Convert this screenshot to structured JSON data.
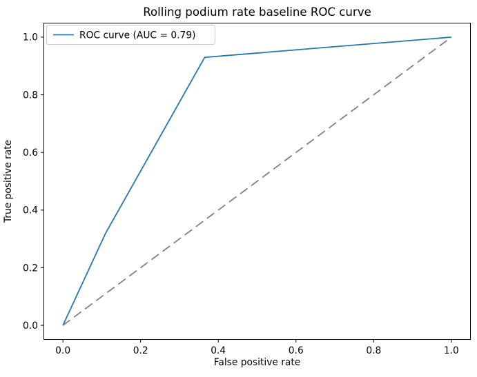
{
  "chart_data": {
    "type": "line",
    "title": "Rolling podium rate baseline ROC curve",
    "xlabel": "False positive rate",
    "ylabel": "True positive rate",
    "xlim": [
      -0.05,
      1.05
    ],
    "ylim": [
      -0.05,
      1.05
    ],
    "xticks": [
      0.0,
      0.2,
      0.4,
      0.6,
      0.8,
      1.0
    ],
    "yticks": [
      0.0,
      0.2,
      0.4,
      0.6,
      0.8,
      1.0
    ],
    "grid": false,
    "auc": 0.79,
    "legend": {
      "position": "upper left",
      "entries": [
        "ROC curve (AUC = 0.79)"
      ]
    },
    "series": [
      {
        "label": "ROC curve (AUC = 0.79)",
        "color": "#1f77b4",
        "line_style": "solid",
        "in_legend": true,
        "x": [
          0.0,
          0.11,
          0.365,
          1.0
        ],
        "y": [
          0.0,
          0.32,
          0.93,
          1.0
        ]
      },
      {
        "label": "",
        "color": "#808080",
        "line_style": "dashed",
        "in_legend": false,
        "x": [
          0.0,
          1.0
        ],
        "y": [
          0.0,
          1.0
        ]
      }
    ]
  },
  "colors": {
    "background": "#ffffff",
    "spine": "#000000",
    "tick": "#000000",
    "text": "#000000",
    "legend_border": "#cccccc",
    "legend_fill_alpha": "0.8"
  }
}
